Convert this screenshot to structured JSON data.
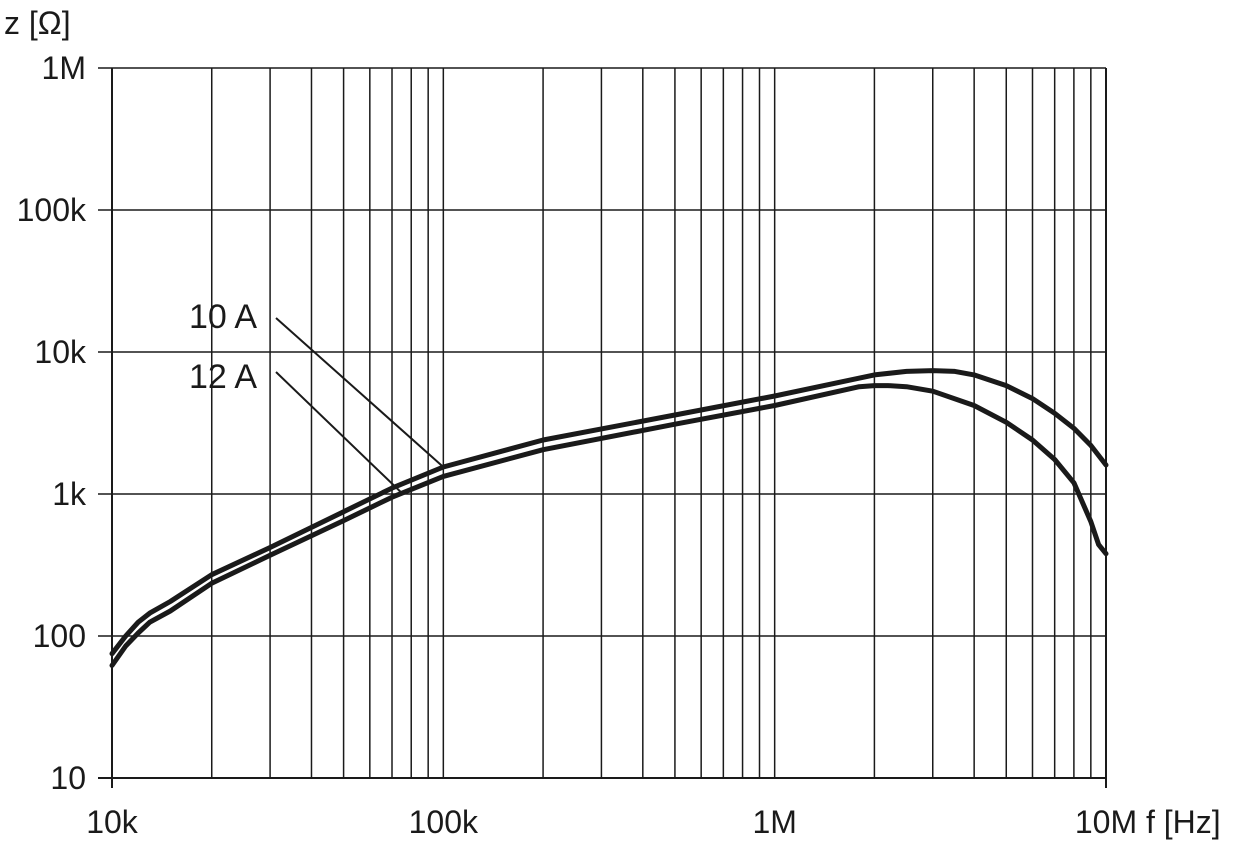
{
  "chart_data": {
    "type": "line",
    "title": "",
    "xlabel": "f [Hz]",
    "ylabel": "z [Ω]",
    "x_scale": "log",
    "y_scale": "log",
    "xlim": [
      10000,
      10000000
    ],
    "ylim": [
      10,
      1000000
    ],
    "grid": true,
    "x_ticks": [
      {
        "value": 10000,
        "label": "10k"
      },
      {
        "value": 100000,
        "label": "100k"
      },
      {
        "value": 1000000,
        "label": "1M"
      },
      {
        "value": 10000000,
        "label": "10M"
      }
    ],
    "y_ticks": [
      {
        "value": 10,
        "label": "10"
      },
      {
        "value": 100,
        "label": "100"
      },
      {
        "value": 1000,
        "label": "1k"
      },
      {
        "value": 10000,
        "label": "10k"
      },
      {
        "value": 100000,
        "label": "100k"
      },
      {
        "value": 1000000,
        "label": "1M"
      }
    ],
    "series": [
      {
        "name": "10 A",
        "x": [
          10000,
          11000,
          12000,
          13000,
          15000,
          20000,
          30000,
          50000,
          70000,
          100000,
          200000,
          500000,
          1000000,
          2000000,
          2500000,
          3000000,
          3500000,
          4000000,
          5000000,
          6000000,
          7000000,
          8000000,
          9000000,
          10000000
        ],
        "y": [
          75,
          100,
          125,
          145,
          175,
          270,
          420,
          750,
          1100,
          1550,
          2400,
          3600,
          4900,
          6900,
          7300,
          7400,
          7300,
          6900,
          5800,
          4700,
          3700,
          2900,
          2200,
          1600
        ]
      },
      {
        "name": "12 A",
        "x": [
          10000,
          11000,
          12000,
          13000,
          15000,
          20000,
          30000,
          50000,
          70000,
          100000,
          200000,
          500000,
          1000000,
          1800000,
          2000000,
          2200000,
          2500000,
          3000000,
          4000000,
          5000000,
          6000000,
          7000000,
          8000000,
          9000000,
          9500000,
          10000000
        ],
        "y": [
          62,
          85,
          105,
          125,
          150,
          235,
          370,
          650,
          950,
          1330,
          2050,
          3100,
          4200,
          5700,
          5800,
          5800,
          5700,
          5300,
          4200,
          3200,
          2400,
          1750,
          1200,
          640,
          440,
          380
        ]
      }
    ],
    "annotations": [
      {
        "text": "10 A",
        "series": "10 A"
      },
      {
        "text": "12 A",
        "series": "12 A"
      }
    ]
  }
}
